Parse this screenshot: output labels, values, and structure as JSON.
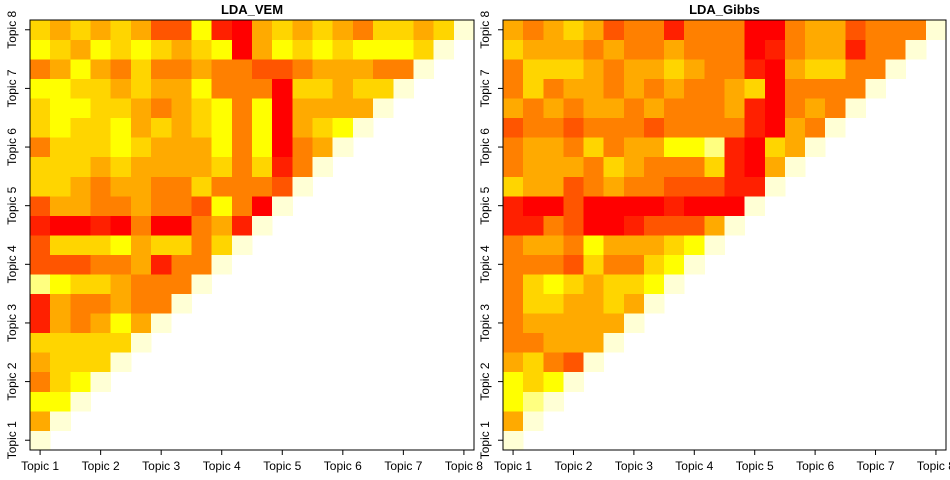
{
  "chart_data": [
    {
      "type": "heatmap",
      "title": "LDA_VEM",
      "colors": [
        "#FF0000",
        "#FF2000",
        "#FF5500",
        "#FF8000",
        "#FFAA00",
        "#FFD500",
        "#FFFF00",
        "#FFFF80",
        "#FFFFD5"
      ],
      "xlim": [
        -0.5,
        21.5
      ],
      "ylim": [
        -0.5,
        21.5
      ],
      "xticks": [
        {
          "value": 0,
          "label": "Topic 1"
        },
        {
          "value": 3,
          "label": "Topic 2"
        },
        {
          "value": 6,
          "label": "Topic 3"
        },
        {
          "value": 9,
          "label": "Topic 4"
        },
        {
          "value": 12,
          "label": "Topic 5"
        },
        {
          "value": 15,
          "label": "Topic 6"
        },
        {
          "value": 18,
          "label": "Topic 7"
        },
        {
          "value": 21,
          "label": "Topic 8"
        }
      ],
      "yticks": [
        {
          "value": 0,
          "label": "Topic 1"
        },
        {
          "value": 3,
          "label": "Topic 2"
        },
        {
          "value": 6,
          "label": "Topic 3"
        },
        {
          "value": 9,
          "label": "Topic 4"
        },
        {
          "value": 12,
          "label": "Topic 5"
        },
        {
          "value": 15,
          "label": "Topic 6"
        },
        {
          "value": 18,
          "label": "Topic 7"
        },
        {
          "value": 21,
          "label": "Topic 8"
        }
      ],
      "z": [
        [
          8
        ],
        [
          4,
          8
        ],
        [
          6,
          6,
          8
        ],
        [
          3,
          5,
          6,
          8
        ],
        [
          4,
          5,
          5,
          5,
          8
        ],
        [
          5,
          5,
          5,
          5,
          5,
          8
        ],
        [
          1,
          4,
          3,
          4,
          6,
          4,
          8
        ],
        [
          1,
          4,
          3,
          3,
          4,
          3,
          3,
          8
        ],
        [
          7,
          6,
          5,
          5,
          4,
          3,
          3,
          3,
          8
        ],
        [
          2,
          2,
          2,
          3,
          3,
          4,
          1,
          3,
          3,
          8
        ],
        [
          2,
          5,
          5,
          5,
          6,
          4,
          5,
          5,
          3,
          5,
          8
        ],
        [
          1,
          0,
          0,
          1,
          0,
          3,
          0,
          0,
          3,
          4,
          1,
          8
        ],
        [
          2,
          4,
          4,
          3,
          3,
          4,
          3,
          3,
          2,
          6,
          3,
          0,
          8
        ],
        [
          5,
          5,
          4,
          3,
          4,
          4,
          3,
          3,
          5,
          3,
          3,
          3,
          2,
          8
        ],
        [
          5,
          5,
          5,
          4,
          5,
          4,
          4,
          4,
          4,
          5,
          3,
          5,
          1,
          3,
          8
        ],
        [
          3,
          5,
          5,
          5,
          6,
          5,
          4,
          4,
          4,
          6,
          3,
          6,
          0,
          3,
          4,
          8
        ],
        [
          5,
          6,
          5,
          5,
          6,
          4,
          5,
          4,
          5,
          6,
          3,
          6,
          0,
          4,
          5,
          6,
          8
        ],
        [
          5,
          6,
          6,
          5,
          5,
          4,
          3,
          4,
          5,
          6,
          3,
          6,
          0,
          4,
          4,
          4,
          4,
          8
        ],
        [
          6,
          6,
          5,
          5,
          4,
          5,
          4,
          4,
          6,
          3,
          3,
          3,
          0,
          5,
          5,
          4,
          5,
          5,
          8
        ],
        [
          3,
          4,
          6,
          4,
          3,
          5,
          3,
          3,
          4,
          3,
          3,
          2,
          2,
          3,
          4,
          4,
          4,
          3,
          3,
          8
        ],
        [
          6,
          5,
          4,
          6,
          5,
          6,
          5,
          4,
          5,
          6,
          0,
          4,
          6,
          5,
          6,
          5,
          6,
          6,
          6,
          5,
          8
        ],
        [
          5,
          4,
          5,
          4,
          5,
          4,
          2,
          2,
          6,
          1,
          0,
          4,
          5,
          4,
          5,
          4,
          3,
          5,
          5,
          4,
          5,
          8
        ]
      ]
    },
    {
      "type": "heatmap",
      "title": "LDA_Gibbs",
      "colors": [
        "#FF0000",
        "#FF2000",
        "#FF5500",
        "#FF8000",
        "#FFAA00",
        "#FFD500",
        "#FFFF00",
        "#FFFF80",
        "#FFFFD5"
      ],
      "xlim": [
        -0.5,
        21.5
      ],
      "ylim": [
        -0.5,
        21.5
      ],
      "xticks": [
        {
          "value": 0,
          "label": "Topic 1"
        },
        {
          "value": 3,
          "label": "Topic 2"
        },
        {
          "value": 6,
          "label": "Topic 3"
        },
        {
          "value": 9,
          "label": "Topic 4"
        },
        {
          "value": 12,
          "label": "Topic 5"
        },
        {
          "value": 15,
          "label": "Topic 6"
        },
        {
          "value": 18,
          "label": "Topic 7"
        },
        {
          "value": 21,
          "label": "Topic 8"
        }
      ],
      "yticks": [
        {
          "value": 0,
          "label": "Topic 1"
        },
        {
          "value": 3,
          "label": "Topic 2"
        },
        {
          "value": 6,
          "label": "Topic 3"
        },
        {
          "value": 9,
          "label": "Topic 4"
        },
        {
          "value": 12,
          "label": "Topic 5"
        },
        {
          "value": 15,
          "label": "Topic 6"
        },
        {
          "value": 18,
          "label": "Topic 7"
        },
        {
          "value": 21,
          "label": "Topic 8"
        }
      ],
      "z": [
        [
          8
        ],
        [
          4,
          8
        ],
        [
          6,
          7,
          8
        ],
        [
          6,
          5,
          6,
          8
        ],
        [
          4,
          5,
          3,
          2,
          8
        ],
        [
          3,
          3,
          4,
          4,
          4,
          8
        ],
        [
          3,
          4,
          4,
          4,
          4,
          4,
          8
        ],
        [
          3,
          5,
          5,
          4,
          4,
          5,
          4,
          8
        ],
        [
          3,
          5,
          6,
          5,
          4,
          5,
          5,
          6,
          8
        ],
        [
          3,
          3,
          3,
          2,
          5,
          3,
          3,
          5,
          6,
          8
        ],
        [
          3,
          4,
          4,
          3,
          6,
          4,
          4,
          4,
          5,
          6,
          8
        ],
        [
          1,
          1,
          3,
          2,
          0,
          0,
          1,
          2,
          2,
          2,
          4,
          8
        ],
        [
          1,
          0,
          0,
          2,
          0,
          0,
          0,
          0,
          1,
          0,
          0,
          0,
          8
        ],
        [
          5,
          4,
          4,
          2,
          3,
          4,
          3,
          3,
          2,
          2,
          2,
          1,
          1,
          8
        ],
        [
          3,
          4,
          4,
          4,
          3,
          5,
          4,
          3,
          3,
          3,
          5,
          1,
          0,
          4,
          8
        ],
        [
          3,
          4,
          4,
          3,
          5,
          3,
          4,
          4,
          6,
          6,
          7,
          1,
          0,
          5,
          4,
          8
        ],
        [
          2,
          3,
          3,
          2,
          3,
          3,
          3,
          2,
          3,
          3,
          3,
          3,
          1,
          0,
          4,
          3,
          8
        ],
        [
          4,
          3,
          4,
          3,
          4,
          4,
          3,
          4,
          3,
          3,
          3,
          4,
          1,
          0,
          3,
          4,
          3,
          8
        ],
        [
          3,
          5,
          3,
          4,
          4,
          3,
          4,
          3,
          4,
          3,
          3,
          4,
          5,
          0,
          3,
          3,
          3,
          3,
          8
        ],
        [
          3,
          5,
          5,
          5,
          4,
          3,
          4,
          4,
          5,
          4,
          3,
          3,
          1,
          0,
          4,
          5,
          5,
          3,
          3,
          8
        ],
        [
          5,
          4,
          4,
          4,
          3,
          4,
          3,
          3,
          4,
          3,
          3,
          3,
          0,
          1,
          3,
          4,
          4,
          1,
          3,
          3,
          8
        ],
        [
          4,
          3,
          4,
          5,
          4,
          2,
          3,
          3,
          1,
          3,
          3,
          3,
          0,
          0,
          3,
          4,
          4,
          2,
          3,
          3,
          3,
          8
        ]
      ]
    }
  ]
}
